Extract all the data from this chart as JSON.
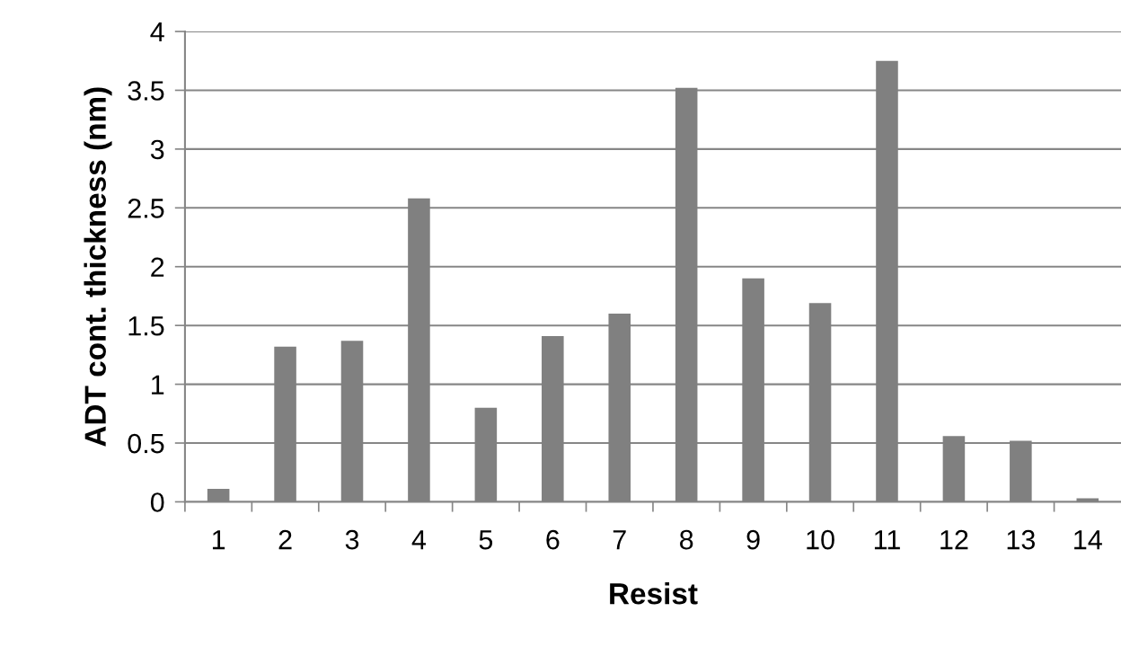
{
  "chart_data": {
    "type": "bar",
    "xlabel": "Resist",
    "ylabel": "ADT cont. thickness (nm)",
    "categories": [
      "1",
      "2",
      "3",
      "4",
      "5",
      "6",
      "7",
      "8",
      "9",
      "10",
      "11",
      "12",
      "13",
      "14"
    ],
    "values": [
      0.11,
      1.32,
      1.37,
      2.58,
      0.8,
      1.41,
      1.6,
      3.52,
      1.9,
      1.69,
      3.75,
      0.56,
      0.52,
      0.03
    ],
    "color": "#808080",
    "ylim": [
      0,
      4
    ],
    "yticks": [
      0,
      0.5,
      1,
      1.5,
      2,
      2.5,
      3,
      3.5,
      4
    ],
    "grid": "y"
  }
}
